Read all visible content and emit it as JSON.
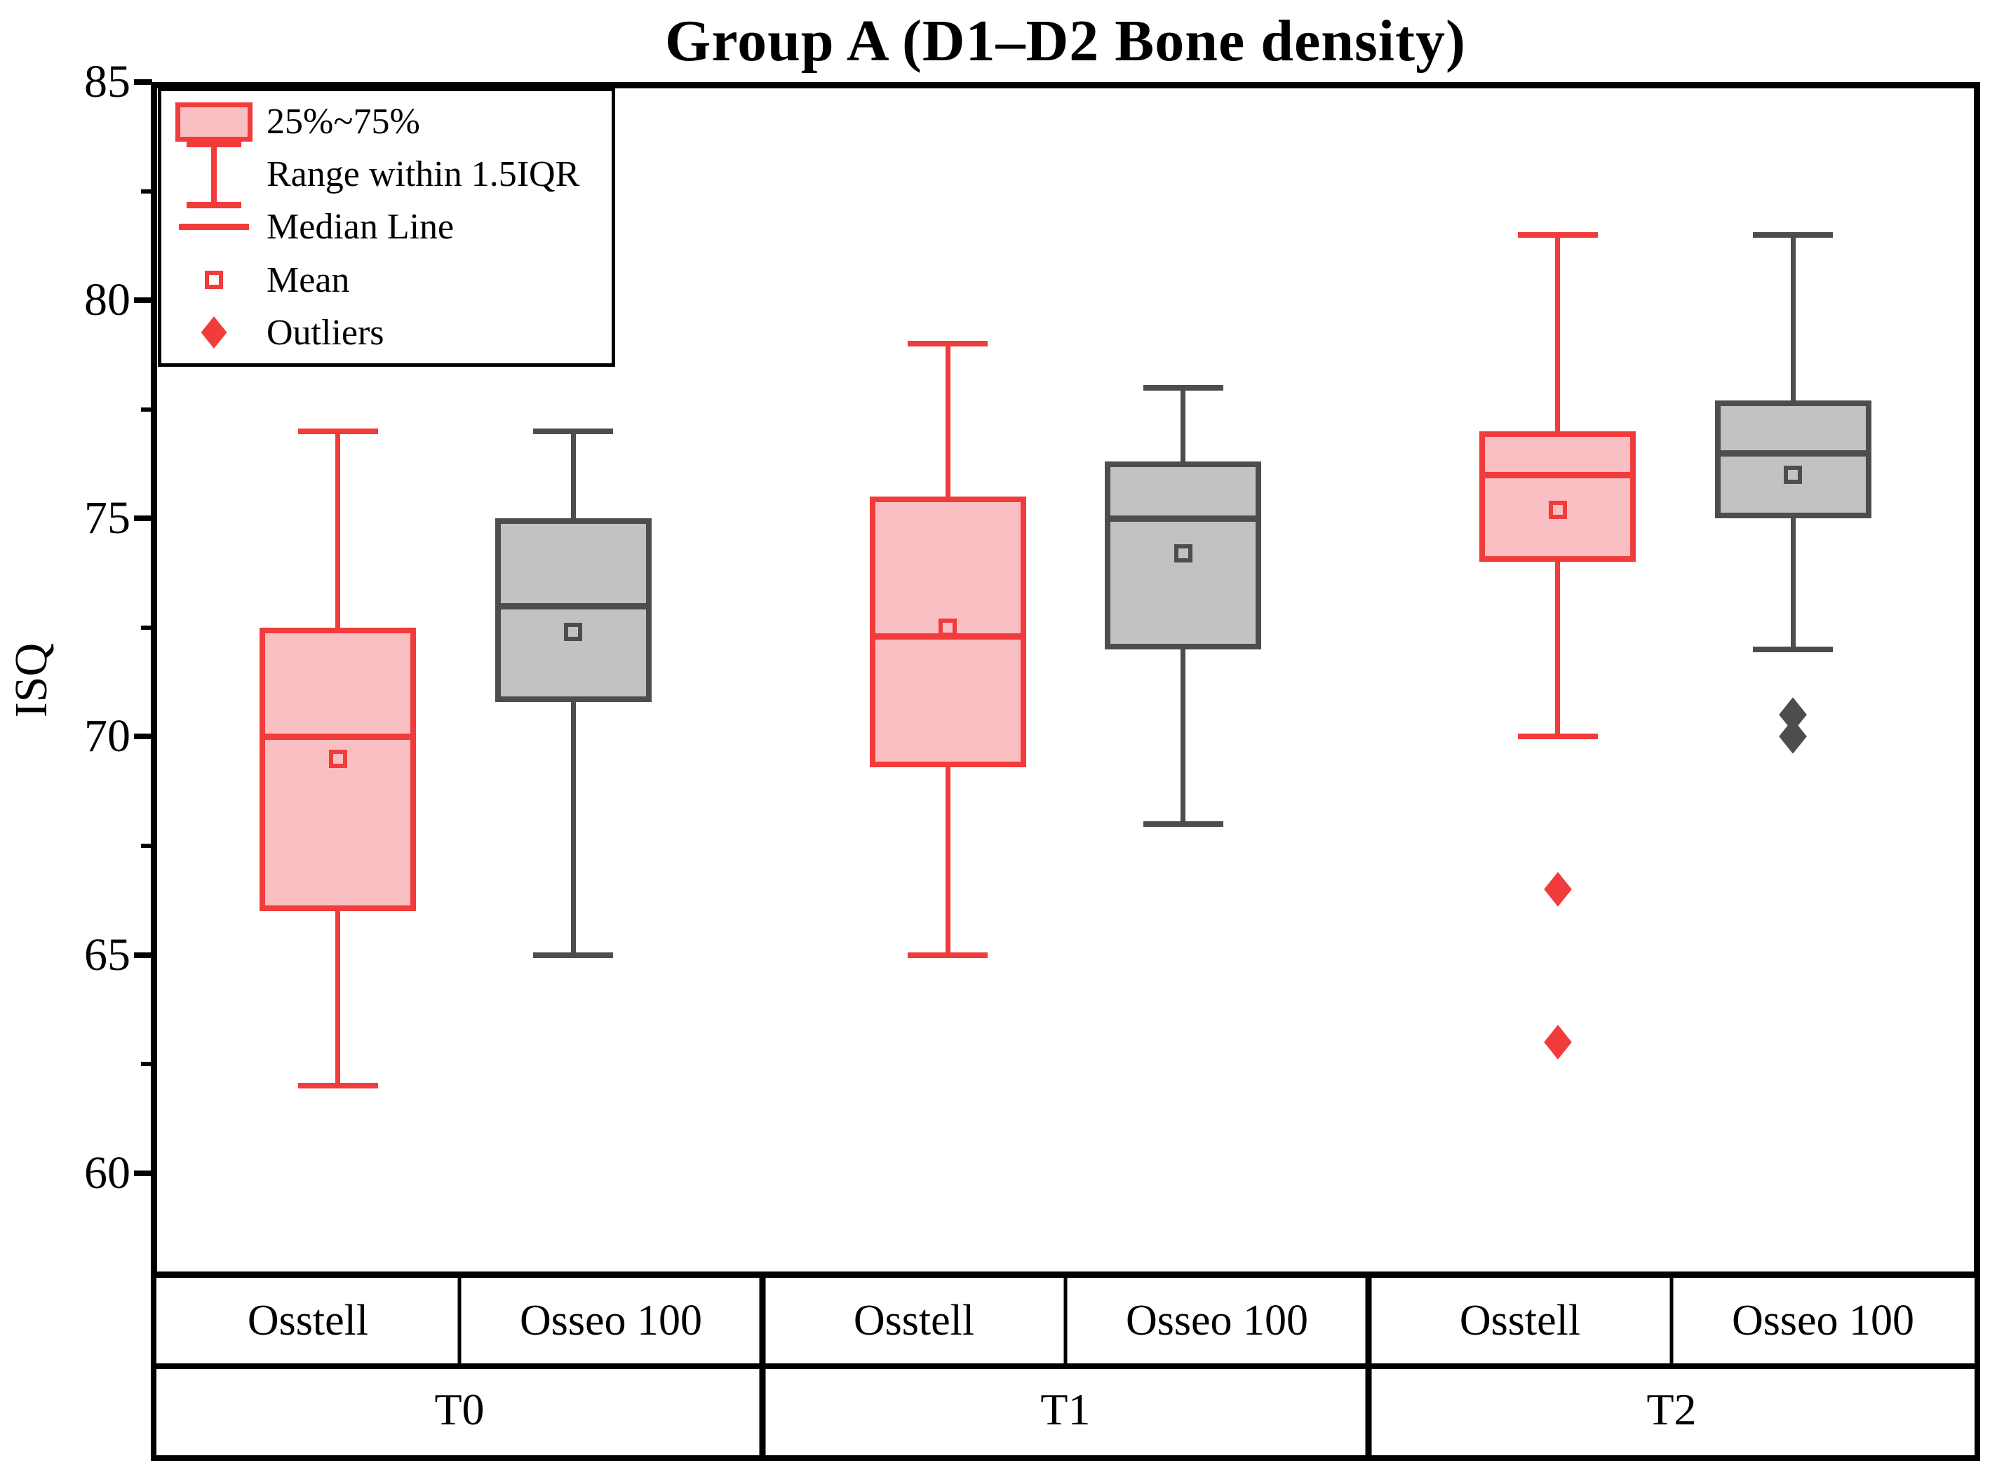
{
  "title": "Group A (D1–D2 Bone density)",
  "y_axis": {
    "label": "ISQ",
    "tick_labels": [
      "85",
      "80",
      "75",
      "70",
      "65",
      "60"
    ]
  },
  "x_axis": {
    "groups": [
      {
        "label": "T0",
        "devices": [
          "Osstell",
          "Osseo 100"
        ]
      },
      {
        "label": "T1",
        "devices": [
          "Osstell",
          "Osseo 100"
        ]
      },
      {
        "label": "T2",
        "devices": [
          "Osstell",
          "Osseo 100"
        ]
      }
    ]
  },
  "legend": {
    "items": [
      {
        "symbol": "box-swatch",
        "label": "25%~75%"
      },
      {
        "symbol": "whisker-range",
        "label": "Range within 1.5IQR"
      },
      {
        "symbol": "median-line",
        "label": "Median Line"
      },
      {
        "symbol": "mean-marker",
        "label": "Mean"
      },
      {
        "symbol": "outlier-marker",
        "label": "Outliers"
      }
    ]
  },
  "colors": {
    "osstell_stroke": "#f23b3b",
    "osstell_fill": "#f9bfc2",
    "osseo_stroke": "#4d4d4d",
    "osseo_fill": "#c2c2c2",
    "axis": "#000000",
    "background": "#ffffff"
  },
  "chart_data": {
    "type": "boxplot",
    "title": "Group A (D1–D2 Bone density)",
    "ylabel": "ISQ",
    "ylim": [
      57.6,
      85
    ],
    "yticks_major": [
      85,
      80,
      75,
      70,
      65,
      60
    ],
    "yticks_minor": [
      82.5,
      77.5,
      72.5,
      67.5,
      62.5
    ],
    "grid": false,
    "legend_position": "top-left",
    "categories": [
      "T0",
      "T1",
      "T2"
    ],
    "series": [
      {
        "group": "T0",
        "device": "Osstell",
        "color": "red",
        "whisker_low": 62,
        "q1": 66,
        "median": 70,
        "q3": 72.5,
        "whisker_high": 77,
        "mean": 69.5,
        "outliers": []
      },
      {
        "group": "T0",
        "device": "Osseo 100",
        "color": "gray",
        "whisker_low": 65,
        "q1": 70.8,
        "median": 73,
        "q3": 75,
        "whisker_high": 77,
        "mean": 72.4,
        "outliers": []
      },
      {
        "group": "T1",
        "device": "Osstell",
        "color": "red",
        "whisker_low": 65,
        "q1": 69.3,
        "median": 72.3,
        "q3": 75.5,
        "whisker_high": 79,
        "mean": 72.5,
        "outliers": []
      },
      {
        "group": "T1",
        "device": "Osseo 100",
        "color": "gray",
        "whisker_low": 68,
        "q1": 72,
        "median": 75,
        "q3": 76.3,
        "whisker_high": 78,
        "mean": 74.2,
        "outliers": []
      },
      {
        "group": "T2",
        "device": "Osstell",
        "color": "red",
        "whisker_low": 70,
        "q1": 74,
        "median": 76,
        "q3": 77,
        "whisker_high": 81.5,
        "mean": 75.2,
        "outliers": [
          66.5,
          63
        ]
      },
      {
        "group": "T2",
        "device": "Osseo 100",
        "color": "gray",
        "whisker_low": 72,
        "q1": 75,
        "median": 76.5,
        "q3": 77.7,
        "whisker_high": 81.5,
        "mean": 76.0,
        "outliers": [
          70.5,
          70
        ]
      }
    ]
  }
}
